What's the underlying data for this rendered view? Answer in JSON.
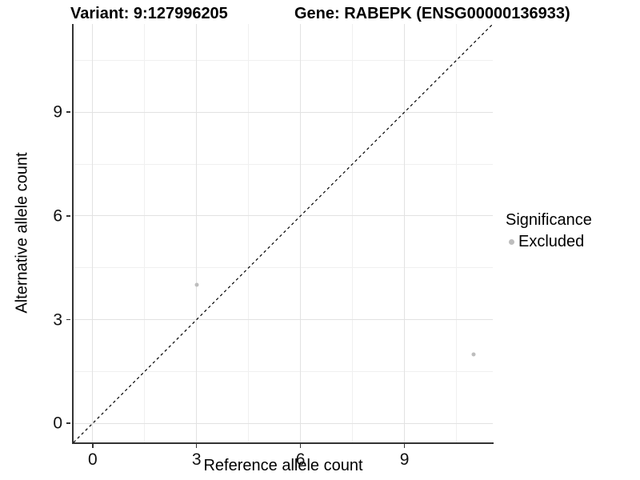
{
  "chart_data": {
    "type": "scatter",
    "titles": {
      "variant": "Variant: 9:127996205",
      "gene": "Gene: RABEPK (ENSG00000136933)"
    },
    "xlabel": "Reference allele count",
    "ylabel": "Alternative allele count",
    "xlim": [
      -0.55,
      11.55
    ],
    "ylim": [
      -0.55,
      11.55
    ],
    "x_major_ticks": [
      0,
      3,
      6,
      9
    ],
    "y_major_ticks": [
      0,
      3,
      6,
      9
    ],
    "x_minor_ticks": [
      1.5,
      4.5,
      7.5,
      10.5
    ],
    "y_minor_ticks": [
      1.5,
      4.5,
      7.5,
      10.5
    ],
    "grid": true,
    "series": [
      {
        "name": "Excluded",
        "color": "#bdbdbd",
        "points": [
          [
            3,
            4
          ],
          [
            11,
            2
          ]
        ]
      }
    ],
    "reference_line": {
      "slope": 1,
      "intercept": 0,
      "style": "dashed",
      "color": "#000000"
    },
    "legend": {
      "title": "Significance",
      "position": "right",
      "items": [
        {
          "label": "Excluded",
          "color": "#bdbdbd"
        }
      ]
    },
    "colors": {
      "background": "#ffffff",
      "grid_major": "#e2e2e2",
      "grid_minor": "#f0f0f0",
      "axis_line": "#333333",
      "tick_text": "#111111",
      "title_text": "#000000"
    }
  }
}
